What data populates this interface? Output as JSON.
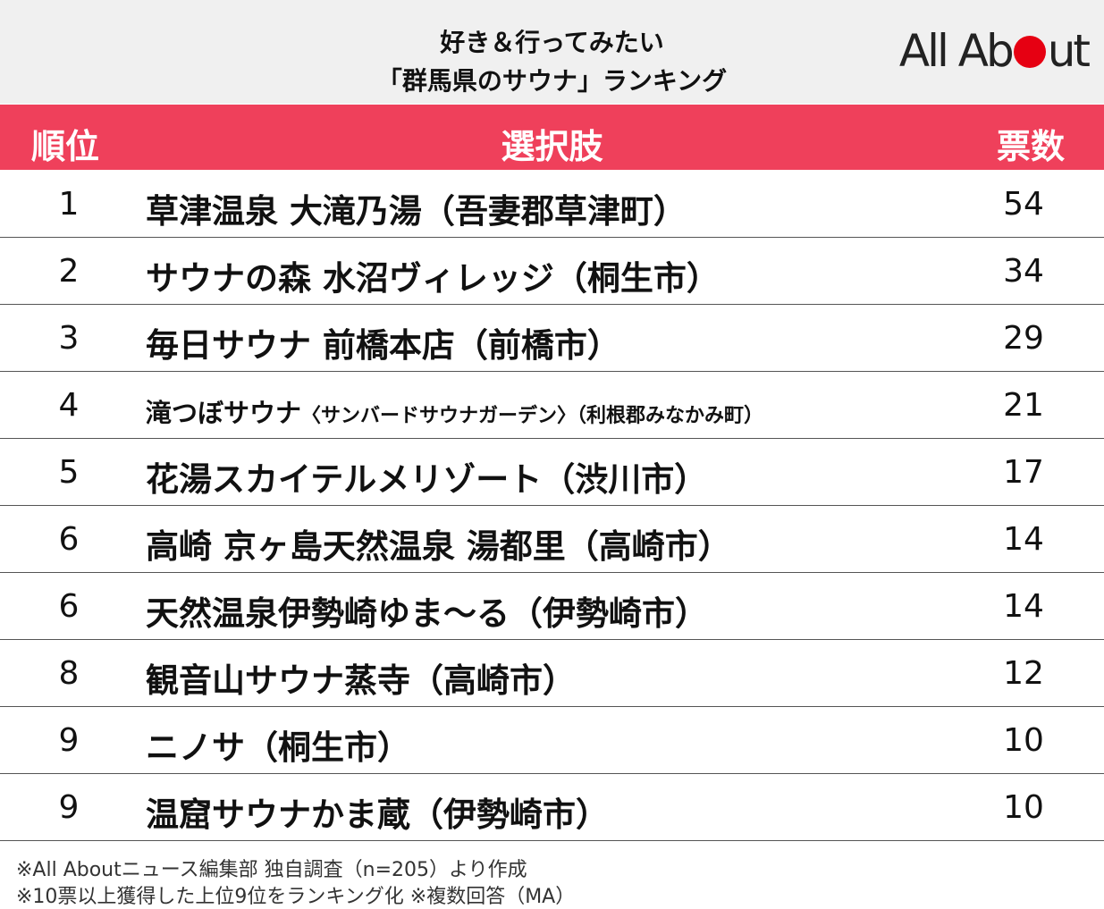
{
  "header": {
    "title_lines": [
      "好き＆行ってみたい",
      "「群馬県のサウナ」ランキング"
    ],
    "logo": "All About"
  },
  "table": {
    "columns": [
      "順位",
      "選択肢",
      "票数"
    ],
    "rows": [
      {
        "rank": 1,
        "name": "草津温泉 大滝乃湯（吾妻郡草津町）",
        "votes": 54
      },
      {
        "rank": 2,
        "name": "サウナの森 水沼ヴィレッジ（桐生市）",
        "votes": 34
      },
      {
        "rank": 3,
        "name": "毎日サウナ 前橋本店（前橋市）",
        "votes": 29
      },
      {
        "rank": 4,
        "name": "滝つぼサウナ",
        "note": "〈サンバードサウナガーデン〉（利根郡みなかみ町）",
        "votes": 21
      },
      {
        "rank": 5,
        "name": "花湯スカイテルメリゾート（渋川市）",
        "votes": 17
      },
      {
        "rank": 6,
        "name": "高崎 京ヶ島天然温泉 湯都里（高崎市）",
        "votes": 14
      },
      {
        "rank": 6,
        "name": "天然温泉伊勢崎ゆま～る（伊勢崎市）",
        "votes": 14
      },
      {
        "rank": 8,
        "name": "観音山サウナ蒸寺（高崎市）",
        "votes": 12
      },
      {
        "rank": 9,
        "name": "ニノサ（桐生市）",
        "votes": 10
      },
      {
        "rank": 9,
        "name": "温窟サウナかま蔵（伊勢崎市）",
        "votes": 10
      }
    ]
  },
  "footer": {
    "notes": [
      "※All Aboutニュース編集部 独自調査（n=205）より作成",
      "※10票以上獲得した上位9位をランキング化 ※複数回答（MA）"
    ]
  }
}
